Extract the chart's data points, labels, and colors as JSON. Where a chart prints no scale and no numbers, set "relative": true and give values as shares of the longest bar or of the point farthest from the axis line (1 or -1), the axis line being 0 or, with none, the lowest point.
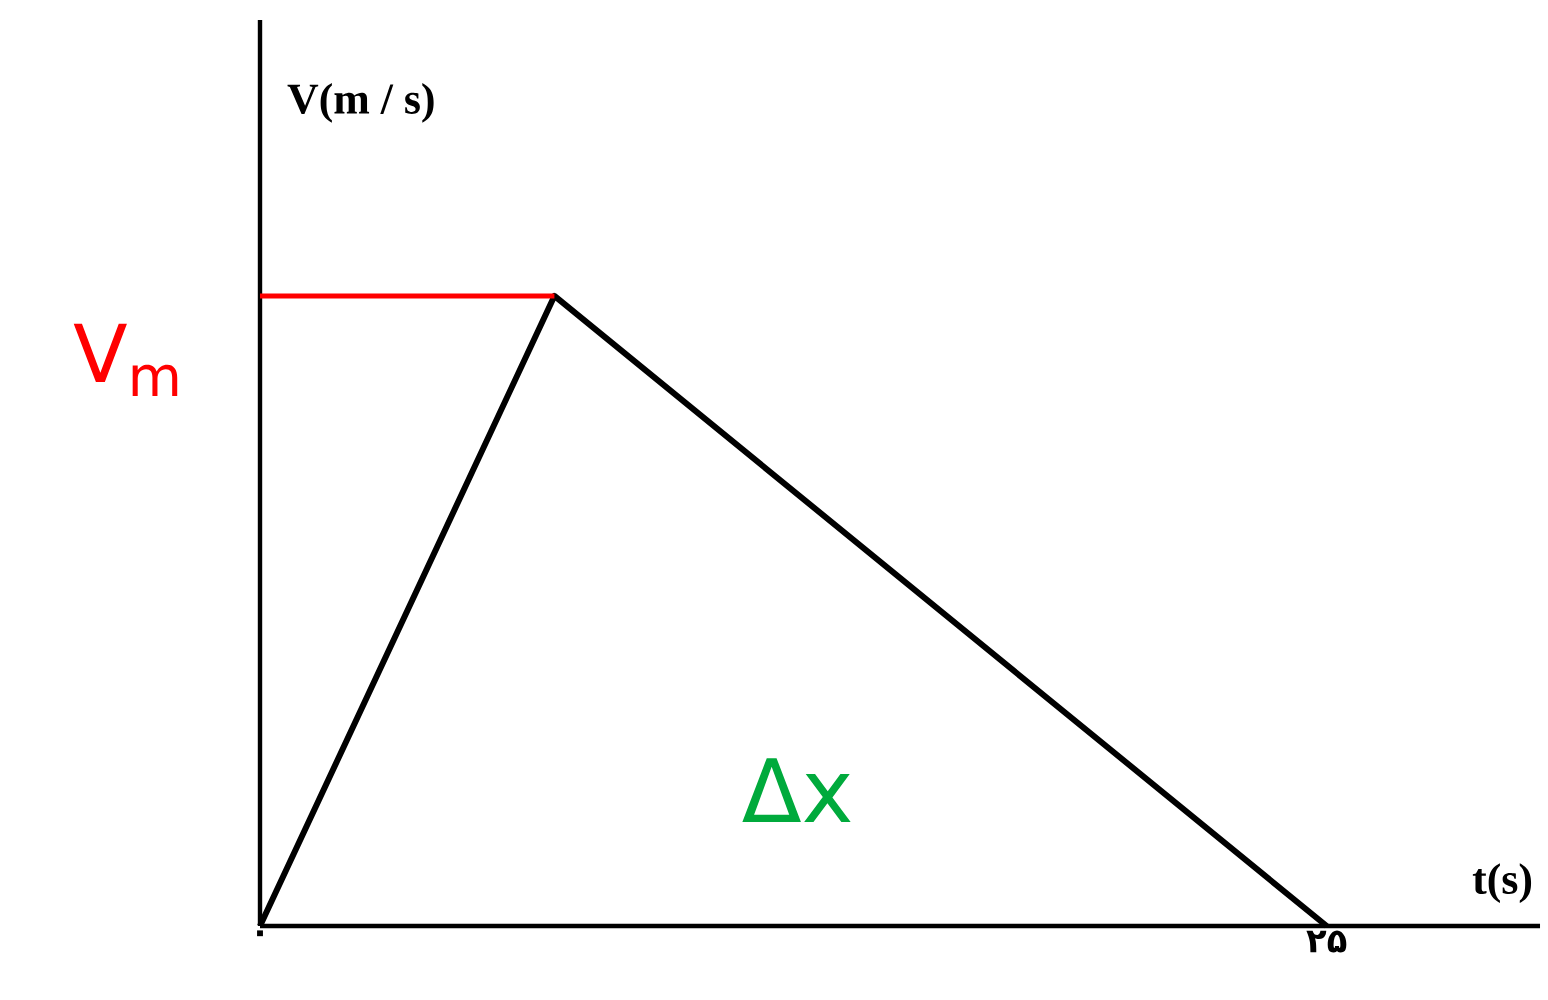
{
  "chart_data": {
    "type": "line",
    "relative": true,
    "xlabel": "t(s)",
    "ylabel": "V(m / s)",
    "xlim": [
      0,
      30
    ],
    "xticks": [
      {
        "value": 0,
        "label": "۰"
      },
      {
        "value": 25,
        "label": "۲۵"
      }
    ],
    "tick_labels": "x",
    "marker": "none",
    "line_style": "solid",
    "x": [
      0,
      6.9,
      25
    ],
    "series": [
      {
        "color": "#000000",
        "values": [
          0,
          1,
          0
        ]
      },
      {
        "name": "V$_{m}$",
        "color": "#ff0000",
        "x": [
          0,
          6.9
        ],
        "values": [
          1,
          1
        ]
      }
    ],
    "annotations": [
      "Δx"
    ]
  }
}
